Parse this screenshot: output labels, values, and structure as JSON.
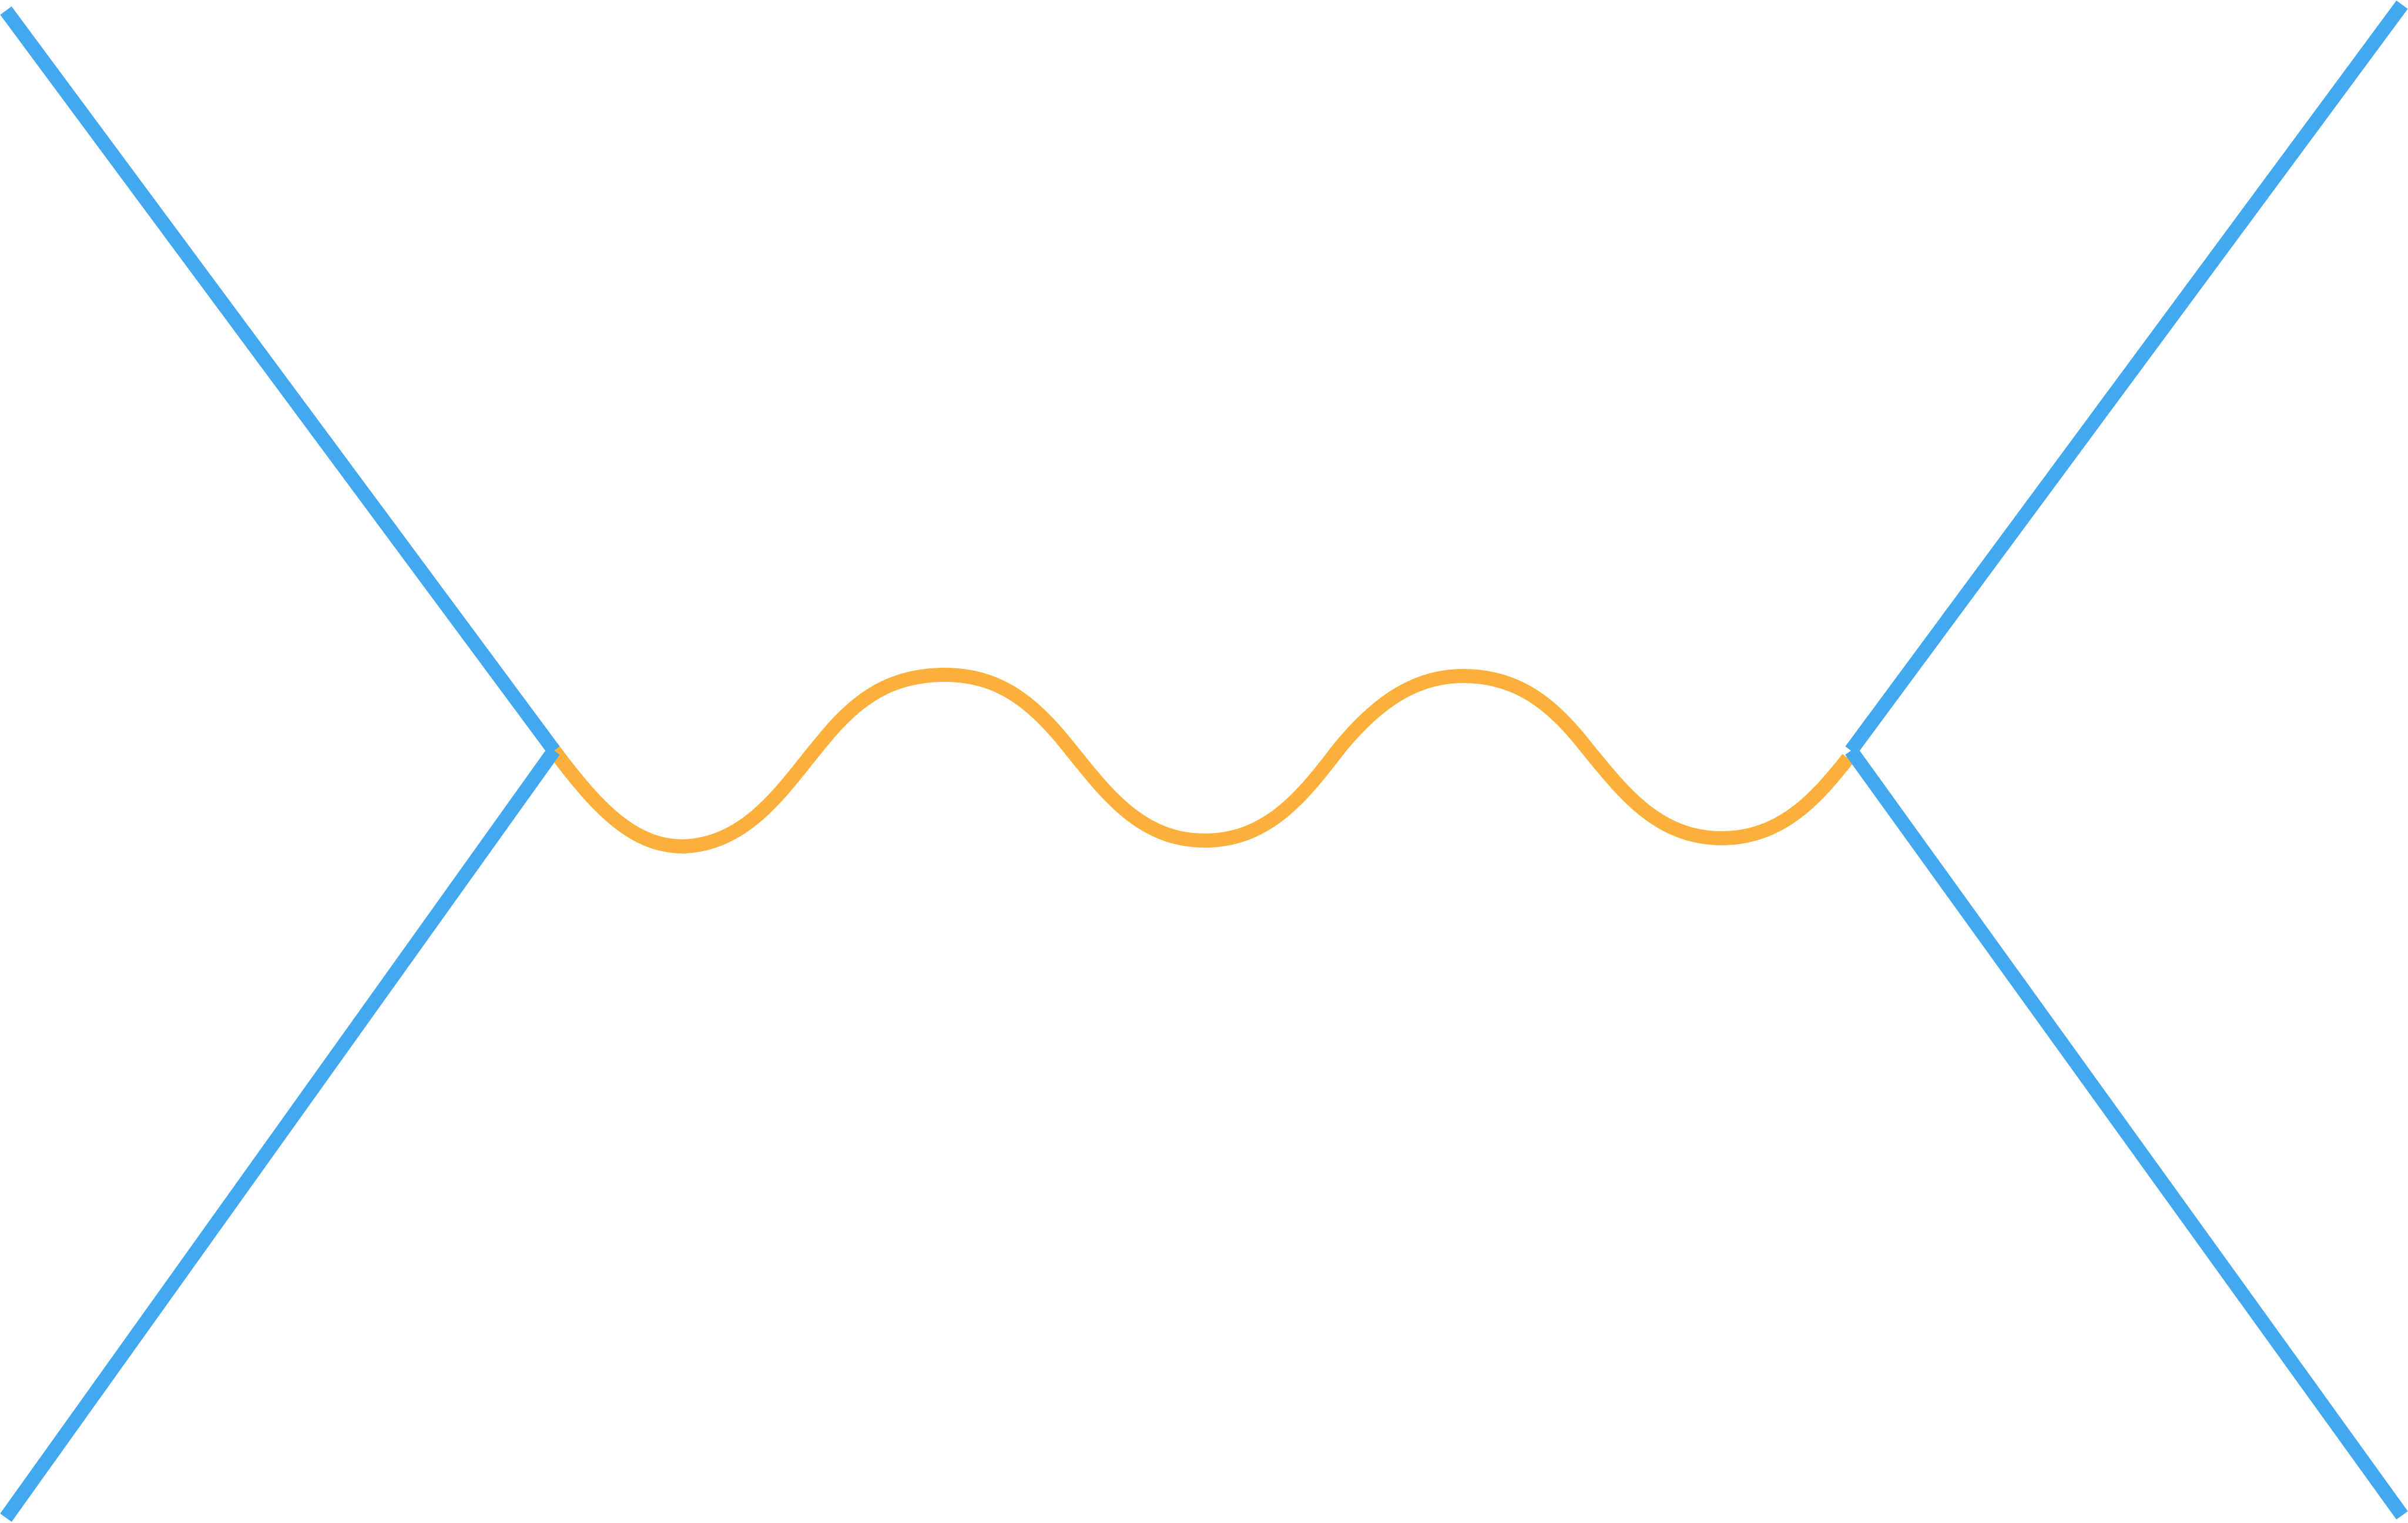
{
  "diagram": {
    "colors": {
      "background": "#ffffff",
      "fermion_lines": "#42a8f0",
      "propagator": "#fbb03b"
    },
    "elements": [
      {
        "kind": "fermion-line",
        "role": "incoming-top-left"
      },
      {
        "kind": "fermion-line",
        "role": "outgoing-bottom-left"
      },
      {
        "kind": "fermion-line",
        "role": "incoming-top-right"
      },
      {
        "kind": "fermion-line",
        "role": "outgoing-bottom-right"
      },
      {
        "kind": "wavy-propagator",
        "role": "exchanged-boson"
      }
    ]
  }
}
